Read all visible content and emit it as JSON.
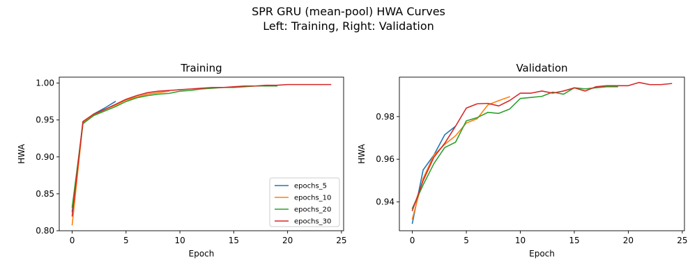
{
  "figure": {
    "suptitle_line1": "SPR GRU (mean-pool) HWA Curves",
    "suptitle_line2": "Left: Training, Right: Validation"
  },
  "colors": {
    "epochs_5": "#1f77b4",
    "epochs_10": "#ff7f0e",
    "epochs_20": "#2ca02c",
    "epochs_30": "#d62728"
  },
  "chart_data": [
    {
      "type": "line",
      "title": "Training",
      "xlabel": "Epoch",
      "ylabel": "HWA",
      "xlim": [
        -1.2,
        25.2
      ],
      "ylim": [
        0.8,
        1.008
      ],
      "xticks": [
        0,
        5,
        10,
        15,
        20,
        25
      ],
      "yticks": [
        0.8,
        0.85,
        0.9,
        0.95,
        1.0
      ],
      "ytick_labels": [
        "0.80",
        "0.85",
        "0.90",
        "0.95",
        "1.00"
      ],
      "grid": false,
      "legend": "lower-right",
      "series": [
        {
          "name": "epochs_5",
          "color": "#1f77b4",
          "x": [
            0,
            1,
            2,
            3,
            4
          ],
          "y": [
            0.826,
            0.947,
            0.958,
            0.966,
            0.975
          ]
        },
        {
          "name": "epochs_10",
          "color": "#ff7f0e",
          "x": [
            0,
            1,
            2,
            3,
            4,
            5,
            6,
            7,
            8,
            9
          ],
          "y": [
            0.808,
            0.946,
            0.957,
            0.964,
            0.97,
            0.977,
            0.981,
            0.985,
            0.987,
            0.989
          ]
        },
        {
          "name": "epochs_20",
          "color": "#2ca02c",
          "x": [
            0,
            1,
            2,
            3,
            4,
            5,
            6,
            7,
            8,
            9,
            10,
            11,
            12,
            13,
            14,
            15,
            16,
            17,
            18,
            19
          ],
          "y": [
            0.832,
            0.945,
            0.956,
            0.962,
            0.968,
            0.975,
            0.98,
            0.983,
            0.985,
            0.986,
            0.989,
            0.99,
            0.992,
            0.993,
            0.994,
            0.994,
            0.995,
            0.996,
            0.996,
            0.996
          ]
        },
        {
          "name": "epochs_30",
          "color": "#d62728",
          "x": [
            0,
            1,
            2,
            3,
            4,
            5,
            6,
            7,
            8,
            9,
            10,
            11,
            12,
            13,
            14,
            15,
            16,
            17,
            18,
            19,
            20,
            21,
            22,
            23,
            24
          ],
          "y": [
            0.82,
            0.948,
            0.958,
            0.964,
            0.971,
            0.978,
            0.983,
            0.987,
            0.989,
            0.99,
            0.991,
            0.992,
            0.993,
            0.994,
            0.994,
            0.995,
            0.996,
            0.996,
            0.997,
            0.997,
            0.998,
            0.998,
            0.998,
            0.998,
            0.998
          ]
        }
      ]
    },
    {
      "type": "line",
      "title": "Validation",
      "xlabel": "Epoch",
      "ylabel": "HWA",
      "xlim": [
        -1.2,
        25.2
      ],
      "ylim": [
        0.9265,
        0.9985
      ],
      "xticks": [
        0,
        5,
        10,
        15,
        20,
        25
      ],
      "yticks": [
        0.94,
        0.96,
        0.98
      ],
      "ytick_labels": [
        "0.94",
        "0.96",
        "0.98"
      ],
      "grid": false,
      "series": [
        {
          "name": "epochs_5",
          "color": "#1f77b4",
          "x": [
            0,
            1,
            2,
            3,
            4
          ],
          "y": [
            0.93,
            0.955,
            0.962,
            0.9715,
            0.9755
          ]
        },
        {
          "name": "epochs_10",
          "color": "#ff7f0e",
          "x": [
            0,
            1,
            2,
            3,
            4,
            5,
            6,
            7,
            8,
            9
          ],
          "y": [
            0.932,
            0.951,
            0.962,
            0.967,
            0.971,
            0.977,
            0.979,
            0.9855,
            0.9875,
            0.9893
          ]
        },
        {
          "name": "epochs_20",
          "color": "#2ca02c",
          "x": [
            0,
            1,
            2,
            3,
            4,
            5,
            6,
            7,
            8,
            9,
            10,
            11,
            12,
            13,
            14,
            15,
            16,
            17,
            18,
            19
          ],
          "y": [
            0.937,
            0.948,
            0.958,
            0.9655,
            0.968,
            0.978,
            0.9795,
            0.982,
            0.9815,
            0.9835,
            0.9885,
            0.989,
            0.9895,
            0.9915,
            0.9905,
            0.9935,
            0.993,
            0.9935,
            0.994,
            0.994
          ]
        },
        {
          "name": "epochs_30",
          "color": "#d62728",
          "x": [
            0,
            1,
            2,
            3,
            4,
            5,
            6,
            7,
            8,
            9,
            10,
            11,
            12,
            13,
            14,
            15,
            16,
            17,
            18,
            19,
            20,
            21,
            22,
            23,
            24
          ],
          "y": [
            0.936,
            0.95,
            0.961,
            0.9675,
            0.9755,
            0.984,
            0.986,
            0.9862,
            0.985,
            0.9875,
            0.991,
            0.991,
            0.992,
            0.991,
            0.992,
            0.9935,
            0.992,
            0.994,
            0.9945,
            0.9945,
            0.9945,
            0.996,
            0.995,
            0.995,
            0.9955
          ]
        }
      ]
    }
  ]
}
